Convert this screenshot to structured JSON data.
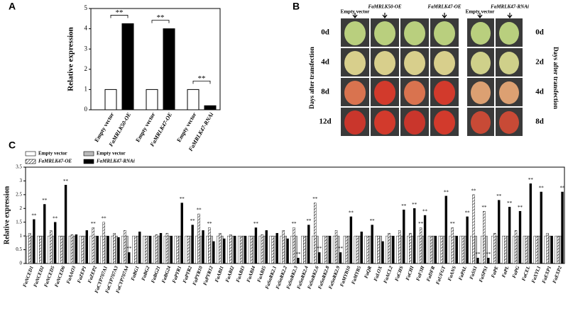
{
  "chart_data": [
    {
      "type": "bar",
      "panel_label": "A",
      "y_label": "Relative expression",
      "categories": [
        "Empty vector",
        "FaMRLK50-OE",
        "Empty vector",
        "FaMRLK47-OE",
        "Empty vector",
        "FaMRLK47-RNAi"
      ],
      "values": [
        1.0,
        4.25,
        1.0,
        4.0,
        1.0,
        0.2
      ],
      "colors": [
        "#ffffff",
        "#000000",
        "#ffffff",
        "#000000",
        "#ffffff",
        "#000000"
      ],
      "significance": "**",
      "ylim": [
        0,
        5
      ],
      "yticks": [
        0,
        1,
        2,
        3,
        4,
        5
      ]
    },
    {
      "type": "grouped-bar",
      "panel_label": "C",
      "y_label": "Relative expression",
      "categories": [
        "FaNCED1",
        "FaNCED2",
        "FaNCED5",
        "FaNCED6",
        "FaAAO3",
        "FaZEP1",
        "FaZEP2",
        "FaCYP707A1",
        "FaCYP707A3",
        "FaCYP707A4",
        "FaBG1",
        "FaBG2",
        "FaBG21",
        "FaBG24",
        "FaPYR1",
        "FaPYR2",
        "FaPYR10",
        "FaPYR12",
        "FaABI1",
        "FaABI2",
        "FaABI3",
        "FaABI4",
        "FaABI5",
        "FaSnRK2.1",
        "FaSnRK2.2",
        "FaSnRK2.3",
        "FaSnRK2.4",
        "FaSnRK2.6",
        "FaSnRK2.8",
        "FaSnRK2.9",
        "FaMYB10",
        "FaMYB5",
        "FaQR",
        "FaLOX",
        "FaACL2",
        "FaCHS",
        "FaCHI",
        "FaF3H",
        "FaDFR",
        "FaUFGT",
        "FaANS",
        "FaPAL",
        "FaSS1",
        "FaSPS1",
        "FaPE",
        "FaPL",
        "FaPG",
        "FaCEL",
        "FaXYL1",
        "FaEXP1",
        "FaEXP2"
      ],
      "series": [
        {
          "name": "Empty vector",
          "color": "#ffffff",
          "hatch": false,
          "values": [
            1,
            1,
            1,
            1,
            1,
            1,
            1,
            1,
            1,
            1,
            1,
            1,
            1,
            1,
            1,
            1,
            1,
            1,
            1,
            1,
            1,
            1,
            1,
            1,
            1,
            1,
            1,
            1,
            1,
            1,
            1,
            1,
            1,
            1,
            1,
            1,
            1,
            1,
            1,
            1,
            1,
            1,
            1,
            1,
            1,
            1,
            1,
            1,
            1,
            1,
            1
          ]
        },
        {
          "name": "FaMRLK47-OE",
          "color": "#ffffff",
          "hatch": true,
          "values": [
            1.1,
            1.0,
            1.2,
            1.0,
            1.05,
            1.0,
            1.3,
            1.5,
            1.1,
            1.2,
            1.0,
            1.0,
            1.05,
            1.1,
            1.0,
            1.0,
            1.8,
            1.3,
            1.1,
            1.05,
            1.0,
            1.0,
            1.05,
            1.0,
            1.2,
            1.3,
            1.0,
            2.2,
            1.0,
            1.2,
            1.0,
            1.0,
            1.0,
            1.0,
            1.1,
            1.2,
            1.1,
            1.3,
            1.0,
            1.0,
            1.3,
            1.0,
            2.5,
            1.9,
            1.1,
            1.0,
            1.2,
            1.0,
            1.0,
            1.1,
            1.0
          ]
        },
        {
          "name": "Empty vector",
          "color": "#bbbbbb",
          "hatch": false,
          "values": [
            1,
            1,
            1,
            1,
            1,
            1,
            1,
            1,
            1,
            1,
            1,
            1,
            1,
            1,
            1,
            1,
            1,
            1,
            1,
            1,
            1,
            1,
            1,
            1,
            1,
            1,
            1,
            1,
            1,
            1,
            1,
            1,
            1,
            1,
            1,
            1,
            1,
            1,
            1,
            1,
            1,
            1,
            1,
            1,
            1,
            1,
            1,
            1,
            1,
            1,
            1
          ]
        },
        {
          "name": "FaMRLK47-RNAi",
          "color": "#000000",
          "hatch": false,
          "values": [
            1.6,
            2.15,
            1.5,
            2.85,
            1.05,
            1.2,
            1.0,
            1.0,
            0.95,
            0.4,
            1.15,
            1.0,
            1.1,
            1.0,
            2.2,
            1.4,
            1.2,
            0.8,
            0.9,
            1.0,
            1.0,
            1.3,
            1.2,
            1.1,
            0.9,
            0.2,
            1.4,
            0.4,
            1.0,
            0.4,
            1.7,
            1.15,
            1.4,
            0.8,
            1.0,
            1.95,
            2.0,
            1.75,
            1.0,
            2.45,
            1.0,
            1.7,
            0.2,
            0.2,
            2.3,
            2.05,
            1.9,
            2.9,
            2.6,
            1.0,
            2.6
          ]
        }
      ],
      "significance": "**",
      "ylim": [
        0,
        3.5
      ],
      "yticks": [
        0,
        0.5,
        1.0,
        1.5,
        2.0,
        2.5,
        3.0,
        3.5
      ]
    }
  ],
  "panel_b": {
    "label": "B",
    "left_headers": [
      "Empty vector",
      "FaMRLK50-OE",
      "FaMRLK47-OE"
    ],
    "right_headers": [
      "Empty vector",
      "FaMRLK47-RNAi"
    ],
    "left_days": [
      "0d",
      "4d",
      "8d",
      "12d"
    ],
    "right_days": [
      "0d",
      "2d",
      "4d",
      "8d"
    ],
    "axis_label": "Days after transfection"
  }
}
